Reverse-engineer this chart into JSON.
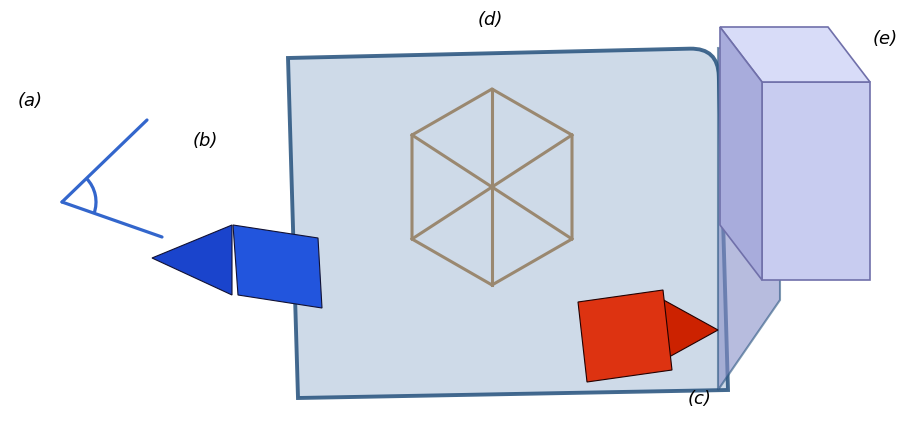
{
  "label_a": "(a)",
  "label_b": "(b)",
  "label_c": "(c)",
  "label_d": "(d)",
  "label_e": "(e)",
  "color_blue_tri": "#1a44cc",
  "color_blue_body": "#2255dd",
  "color_red_body": "#dd3311",
  "color_red_tri": "#cc2200",
  "color_screen_fill": "#c8d5e5",
  "color_screen_edge": "#2a5580",
  "color_inner_cube": "#9a8870",
  "color_box_front": "#c8ccf0",
  "color_box_top": "#dce0f8",
  "color_box_right": "#a8acd8",
  "color_box_side_panel": "#9095c8",
  "color_box_edge": "#7070aa",
  "color_line_blue": "#3366cc",
  "bg": "#ffffff"
}
